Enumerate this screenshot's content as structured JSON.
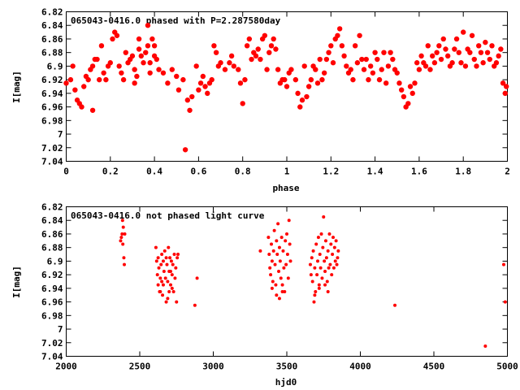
{
  "chart_data": [
    {
      "type": "scatter",
      "title": "065043-0416.0 phased with P=2.287580day",
      "xlabel": "phase",
      "ylabel": "I[mag]",
      "xlim": [
        0,
        2
      ],
      "ylim": [
        7.04,
        6.82
      ],
      "y_inverted": true,
      "grid": false,
      "marker_color": "#ff0000",
      "xticks": [
        "0",
        "0.2",
        "0.4",
        "0.6",
        "0.8",
        "1",
        "1.2",
        "1.4",
        "1.6",
        "1.8",
        "2"
      ],
      "xtick_values": [
        0,
        0.2,
        0.4,
        0.6,
        0.8,
        1,
        1.2,
        1.4,
        1.6,
        1.8,
        2
      ],
      "yticks": [
        "6.82",
        "6.84",
        "6.86",
        "6.88",
        "6.9",
        "6.92",
        "6.94",
        "6.96",
        "6.98",
        "7",
        "7.02",
        "7.04"
      ],
      "ytick_values": [
        6.82,
        6.84,
        6.86,
        6.88,
        6.9,
        6.92,
        6.94,
        6.96,
        6.98,
        7.0,
        7.02,
        7.04
      ],
      "points": [
        [
          0.0,
          6.925
        ],
        [
          0.02,
          6.92
        ],
        [
          0.03,
          6.9
        ],
        [
          0.04,
          6.935
        ],
        [
          0.05,
          6.95
        ],
        [
          0.06,
          6.955
        ],
        [
          0.07,
          6.96
        ],
        [
          0.08,
          6.93
        ],
        [
          0.09,
          6.915
        ],
        [
          0.1,
          6.92
        ],
        [
          0.11,
          6.905
        ],
        [
          0.12,
          6.9
        ],
        [
          0.12,
          6.965
        ],
        [
          0.13,
          6.89
        ],
        [
          0.14,
          6.89
        ],
        [
          0.15,
          6.92
        ],
        [
          0.16,
          6.87
        ],
        [
          0.17,
          6.91
        ],
        [
          0.18,
          6.92
        ],
        [
          0.19,
          6.9
        ],
        [
          0.2,
          6.895
        ],
        [
          0.21,
          6.86
        ],
        [
          0.22,
          6.85
        ],
        [
          0.23,
          6.855
        ],
        [
          0.24,
          6.9
        ],
        [
          0.25,
          6.91
        ],
        [
          0.26,
          6.92
        ],
        [
          0.27,
          6.88
        ],
        [
          0.28,
          6.895
        ],
        [
          0.29,
          6.89
        ],
        [
          0.3,
          6.885
        ],
        [
          0.31,
          6.905
        ],
        [
          0.31,
          6.925
        ],
        [
          0.32,
          6.915
        ],
        [
          0.33,
          6.86
        ],
        [
          0.33,
          6.875
        ],
        [
          0.34,
          6.885
        ],
        [
          0.35,
          6.895
        ],
        [
          0.36,
          6.88
        ],
        [
          0.37,
          6.87
        ],
        [
          0.37,
          6.84
        ],
        [
          0.38,
          6.895
        ],
        [
          0.38,
          6.91
        ],
        [
          0.39,
          6.86
        ],
        [
          0.4,
          6.885
        ],
        [
          0.4,
          6.87
        ],
        [
          0.41,
          6.89
        ],
        [
          0.42,
          6.905
        ],
        [
          0.44,
          6.91
        ],
        [
          0.46,
          6.925
        ],
        [
          0.48,
          6.905
        ],
        [
          0.5,
          6.915
        ],
        [
          0.51,
          6.935
        ],
        [
          0.53,
          6.92
        ],
        [
          0.54,
          7.023
        ],
        [
          0.55,
          6.95
        ],
        [
          0.56,
          6.965
        ],
        [
          0.57,
          6.945
        ],
        [
          0.59,
          6.9
        ],
        [
          0.6,
          6.935
        ],
        [
          0.61,
          6.925
        ],
        [
          0.62,
          6.915
        ],
        [
          0.63,
          6.93
        ],
        [
          0.64,
          6.94
        ],
        [
          0.65,
          6.925
        ],
        [
          0.66,
          6.92
        ],
        [
          0.67,
          6.87
        ],
        [
          0.68,
          6.88
        ],
        [
          0.69,
          6.9
        ],
        [
          0.7,
          6.895
        ],
        [
          0.72,
          6.905
        ],
        [
          0.74,
          6.895
        ],
        [
          0.75,
          6.885
        ],
        [
          0.76,
          6.9
        ],
        [
          0.78,
          6.905
        ],
        [
          0.79,
          6.925
        ],
        [
          0.8,
          6.955
        ],
        [
          0.81,
          6.92
        ],
        [
          0.82,
          6.87
        ],
        [
          0.83,
          6.86
        ],
        [
          0.84,
          6.89
        ],
        [
          0.85,
          6.88
        ],
        [
          0.86,
          6.885
        ],
        [
          0.87,
          6.875
        ],
        [
          0.88,
          6.89
        ],
        [
          0.89,
          6.86
        ],
        [
          0.9,
          6.855
        ],
        [
          0.91,
          6.905
        ],
        [
          0.92,
          6.88
        ],
        [
          0.93,
          6.87
        ],
        [
          0.94,
          6.86
        ],
        [
          0.95,
          6.875
        ],
        [
          0.96,
          6.905
        ],
        [
          0.97,
          6.925
        ],
        [
          0.98,
          6.92
        ],
        [
          0.99,
          6.92
        ],
        [
          1.0,
          6.93
        ],
        [
          1.01,
          6.91
        ],
        [
          1.02,
          6.905
        ],
        [
          1.04,
          6.92
        ],
        [
          1.05,
          6.94
        ],
        [
          1.06,
          6.96
        ],
        [
          1.07,
          6.95
        ],
        [
          1.08,
          6.9
        ],
        [
          1.09,
          6.945
        ],
        [
          1.1,
          6.93
        ],
        [
          1.11,
          6.92
        ],
        [
          1.12,
          6.9
        ],
        [
          1.13,
          6.905
        ],
        [
          1.14,
          6.925
        ],
        [
          1.15,
          6.89
        ],
        [
          1.16,
          6.92
        ],
        [
          1.17,
          6.91
        ],
        [
          1.18,
          6.89
        ],
        [
          1.19,
          6.88
        ],
        [
          1.2,
          6.87
        ],
        [
          1.21,
          6.895
        ],
        [
          1.22,
          6.86
        ],
        [
          1.23,
          6.855
        ],
        [
          1.24,
          6.845
        ],
        [
          1.25,
          6.87
        ],
        [
          1.26,
          6.885
        ],
        [
          1.27,
          6.9
        ],
        [
          1.28,
          6.91
        ],
        [
          1.29,
          6.905
        ],
        [
          1.3,
          6.92
        ],
        [
          1.31,
          6.87
        ],
        [
          1.32,
          6.895
        ],
        [
          1.33,
          6.855
        ],
        [
          1.34,
          6.89
        ],
        [
          1.35,
          6.905
        ],
        [
          1.36,
          6.89
        ],
        [
          1.37,
          6.92
        ],
        [
          1.38,
          6.9
        ],
        [
          1.39,
          6.91
        ],
        [
          1.4,
          6.88
        ],
        [
          1.41,
          6.89
        ],
        [
          1.42,
          6.92
        ],
        [
          1.43,
          6.905
        ],
        [
          1.44,
          6.88
        ],
        [
          1.45,
          6.925
        ],
        [
          1.46,
          6.9
        ],
        [
          1.47,
          6.88
        ],
        [
          1.48,
          6.89
        ],
        [
          1.49,
          6.905
        ],
        [
          1.5,
          6.91
        ],
        [
          1.51,
          6.925
        ],
        [
          1.52,
          6.935
        ],
        [
          1.53,
          6.945
        ],
        [
          1.54,
          6.96
        ],
        [
          1.55,
          6.955
        ],
        [
          1.56,
          6.93
        ],
        [
          1.57,
          6.94
        ],
        [
          1.58,
          6.925
        ],
        [
          1.59,
          6.895
        ],
        [
          1.6,
          6.905
        ],
        [
          1.61,
          6.885
        ],
        [
          1.62,
          6.895
        ],
        [
          1.63,
          6.9
        ],
        [
          1.64,
          6.87
        ],
        [
          1.65,
          6.905
        ],
        [
          1.66,
          6.885
        ],
        [
          1.67,
          6.895
        ],
        [
          1.68,
          6.88
        ],
        [
          1.69,
          6.87
        ],
        [
          1.7,
          6.89
        ],
        [
          1.71,
          6.86
        ],
        [
          1.72,
          6.875
        ],
        [
          1.73,
          6.885
        ],
        [
          1.74,
          6.9
        ],
        [
          1.75,
          6.895
        ],
        [
          1.76,
          6.875
        ],
        [
          1.77,
          6.86
        ],
        [
          1.78,
          6.88
        ],
        [
          1.79,
          6.895
        ],
        [
          1.8,
          6.85
        ],
        [
          1.81,
          6.9
        ],
        [
          1.82,
          6.875
        ],
        [
          1.83,
          6.88
        ],
        [
          1.84,
          6.855
        ],
        [
          1.85,
          6.89
        ],
        [
          1.86,
          6.9
        ],
        [
          1.87,
          6.87
        ],
        [
          1.88,
          6.88
        ],
        [
          1.89,
          6.895
        ],
        [
          1.9,
          6.865
        ],
        [
          1.91,
          6.88
        ],
        [
          1.92,
          6.89
        ],
        [
          1.93,
          6.87
        ],
        [
          1.94,
          6.9
        ],
        [
          1.95,
          6.895
        ],
        [
          1.96,
          6.885
        ],
        [
          1.97,
          6.875
        ],
        [
          1.98,
          6.925
        ],
        [
          1.99,
          6.94
        ],
        [
          1.995,
          6.93
        ]
      ]
    },
    {
      "type": "scatter",
      "title": "065043-0416.0 not phased light curve",
      "xlabel": "hjd0",
      "ylabel": "I[mag]",
      "xlim": [
        2000,
        5000
      ],
      "ylim": [
        7.04,
        6.82
      ],
      "y_inverted": true,
      "grid": false,
      "marker_color": "#ff0000",
      "xticks": [
        "2000",
        "2500",
        "3000",
        "3500",
        "4000",
        "4500",
        "5000"
      ],
      "xtick_values": [
        2000,
        2500,
        3000,
        3500,
        4000,
        4500,
        5000
      ],
      "yticks": [
        "6.82",
        "6.84",
        "6.86",
        "6.88",
        "6.9",
        "6.92",
        "6.94",
        "6.96",
        "6.98",
        "7",
        "7.02",
        "7.04"
      ],
      "ytick_values": [
        6.82,
        6.84,
        6.86,
        6.88,
        6.9,
        6.92,
        6.94,
        6.96,
        6.98,
        7.0,
        7.02,
        7.04
      ],
      "points": [
        [
          2370,
          6.87
        ],
        [
          2375,
          6.865
        ],
        [
          2380,
          6.86
        ],
        [
          2383,
          6.84
        ],
        [
          2385,
          6.875
        ],
        [
          2388,
          6.85
        ],
        [
          2392,
          6.895
        ],
        [
          2395,
          6.905
        ],
        [
          2398,
          6.86
        ],
        [
          2610,
          6.88
        ],
        [
          2615,
          6.9
        ],
        [
          2620,
          6.92
        ],
        [
          2625,
          6.935
        ],
        [
          2630,
          6.91
        ],
        [
          2635,
          6.945
        ],
        [
          2640,
          6.925
        ],
        [
          2645,
          6.905
        ],
        [
          2650,
          6.93
        ],
        [
          2655,
          6.95
        ],
        [
          2660,
          6.9
        ],
        [
          2665,
          6.915
        ],
        [
          2670,
          6.885
        ],
        [
          2675,
          6.925
        ],
        [
          2680,
          6.96
        ],
        [
          2685,
          6.905
        ],
        [
          2690,
          6.93
        ],
        [
          2695,
          6.88
        ],
        [
          2700,
          6.915
        ],
        [
          2705,
          6.895
        ],
        [
          2710,
          6.935
        ],
        [
          2715,
          6.9
        ],
        [
          2720,
          6.92
        ],
        [
          2725,
          6.905
        ],
        [
          2730,
          6.945
        ],
        [
          2735,
          6.89
        ],
        [
          2740,
          6.925
        ],
        [
          2745,
          6.91
        ],
        [
          2750,
          6.96
        ],
        [
          2755,
          6.895
        ],
        [
          2760,
          6.89
        ],
        [
          2640,
          6.945
        ],
        [
          2660,
          6.935
        ],
        [
          2690,
          6.955
        ],
        [
          2700,
          6.945
        ],
        [
          2720,
          6.94
        ],
        [
          2625,
          6.895
        ],
        [
          2650,
          6.89
        ],
        [
          2680,
          6.895
        ],
        [
          2710,
          6.915
        ],
        [
          2890,
          6.925
        ],
        [
          2875,
          6.965
        ],
        [
          3320,
          6.885
        ],
        [
          3375,
          6.865
        ],
        [
          3380,
          6.89
        ],
        [
          3385,
          6.91
        ],
        [
          3390,
          6.92
        ],
        [
          3395,
          6.875
        ],
        [
          3400,
          6.9
        ],
        [
          3405,
          6.93
        ],
        [
          3410,
          6.885
        ],
        [
          3415,
          6.855
        ],
        [
          3420,
          6.905
        ],
        [
          3425,
          6.935
        ],
        [
          3430,
          6.87
        ],
        [
          3435,
          6.89
        ],
        [
          3440,
          6.845
        ],
        [
          3445,
          6.915
        ],
        [
          3450,
          6.88
        ],
        [
          3455,
          6.9
        ],
        [
          3460,
          6.925
        ],
        [
          3465,
          6.865
        ],
        [
          3470,
          6.935
        ],
        [
          3475,
          6.885
        ],
        [
          3480,
          6.91
        ],
        [
          3485,
          6.945
        ],
        [
          3490,
          6.87
        ],
        [
          3495,
          6.905
        ],
        [
          3500,
          6.86
        ],
        [
          3505,
          6.89
        ],
        [
          3510,
          6.925
        ],
        [
          3515,
          6.84
        ],
        [
          3450,
          6.955
        ],
        [
          3470,
          6.945
        ],
        [
          3400,
          6.94
        ],
        [
          3430,
          6.95
        ],
        [
          3520,
          6.875
        ],
        [
          3525,
          6.9
        ],
        [
          3660,
          6.905
        ],
        [
          3665,
          6.92
        ],
        [
          3670,
          6.895
        ],
        [
          3675,
          6.93
        ],
        [
          3680,
          6.885
        ],
        [
          3685,
          6.96
        ],
        [
          3690,
          6.91
        ],
        [
          3695,
          6.945
        ],
        [
          3700,
          6.875
        ],
        [
          3705,
          6.92
        ],
        [
          3710,
          6.9
        ],
        [
          3715,
          6.865
        ],
        [
          3720,
          6.935
        ],
        [
          3725,
          6.89
        ],
        [
          3730,
          6.91
        ],
        [
          3735,
          6.86
        ],
        [
          3740,
          6.925
        ],
        [
          3745,
          6.88
        ],
        [
          3750,
          6.835
        ],
        [
          3755,
          6.9
        ],
        [
          3760,
          6.915
        ],
        [
          3765,
          6.87
        ],
        [
          3770,
          6.895
        ],
        [
          3775,
          6.93
        ],
        [
          3780,
          6.885
        ],
        [
          3785,
          6.91
        ],
        [
          3790,
          6.86
        ],
        [
          3795,
          6.905
        ],
        [
          3800,
          6.875
        ],
        [
          3805,
          6.92
        ],
        [
          3810,
          6.89
        ],
        [
          3815,
          6.865
        ],
        [
          3820,
          6.91
        ],
        [
          3825,
          6.88
        ],
        [
          3830,
          6.9
        ],
        [
          3835,
          6.87
        ],
        [
          3840,
          6.905
        ],
        [
          3845,
          6.895
        ],
        [
          3850,
          6.885
        ],
        [
          3690,
          6.95
        ],
        [
          3720,
          6.94
        ],
        [
          3760,
          6.935
        ],
        [
          3780,
          6.945
        ],
        [
          4235,
          6.965
        ],
        [
          4850,
          7.025
        ],
        [
          4975,
          6.905
        ],
        [
          4985,
          6.96
        ]
      ]
    }
  ]
}
